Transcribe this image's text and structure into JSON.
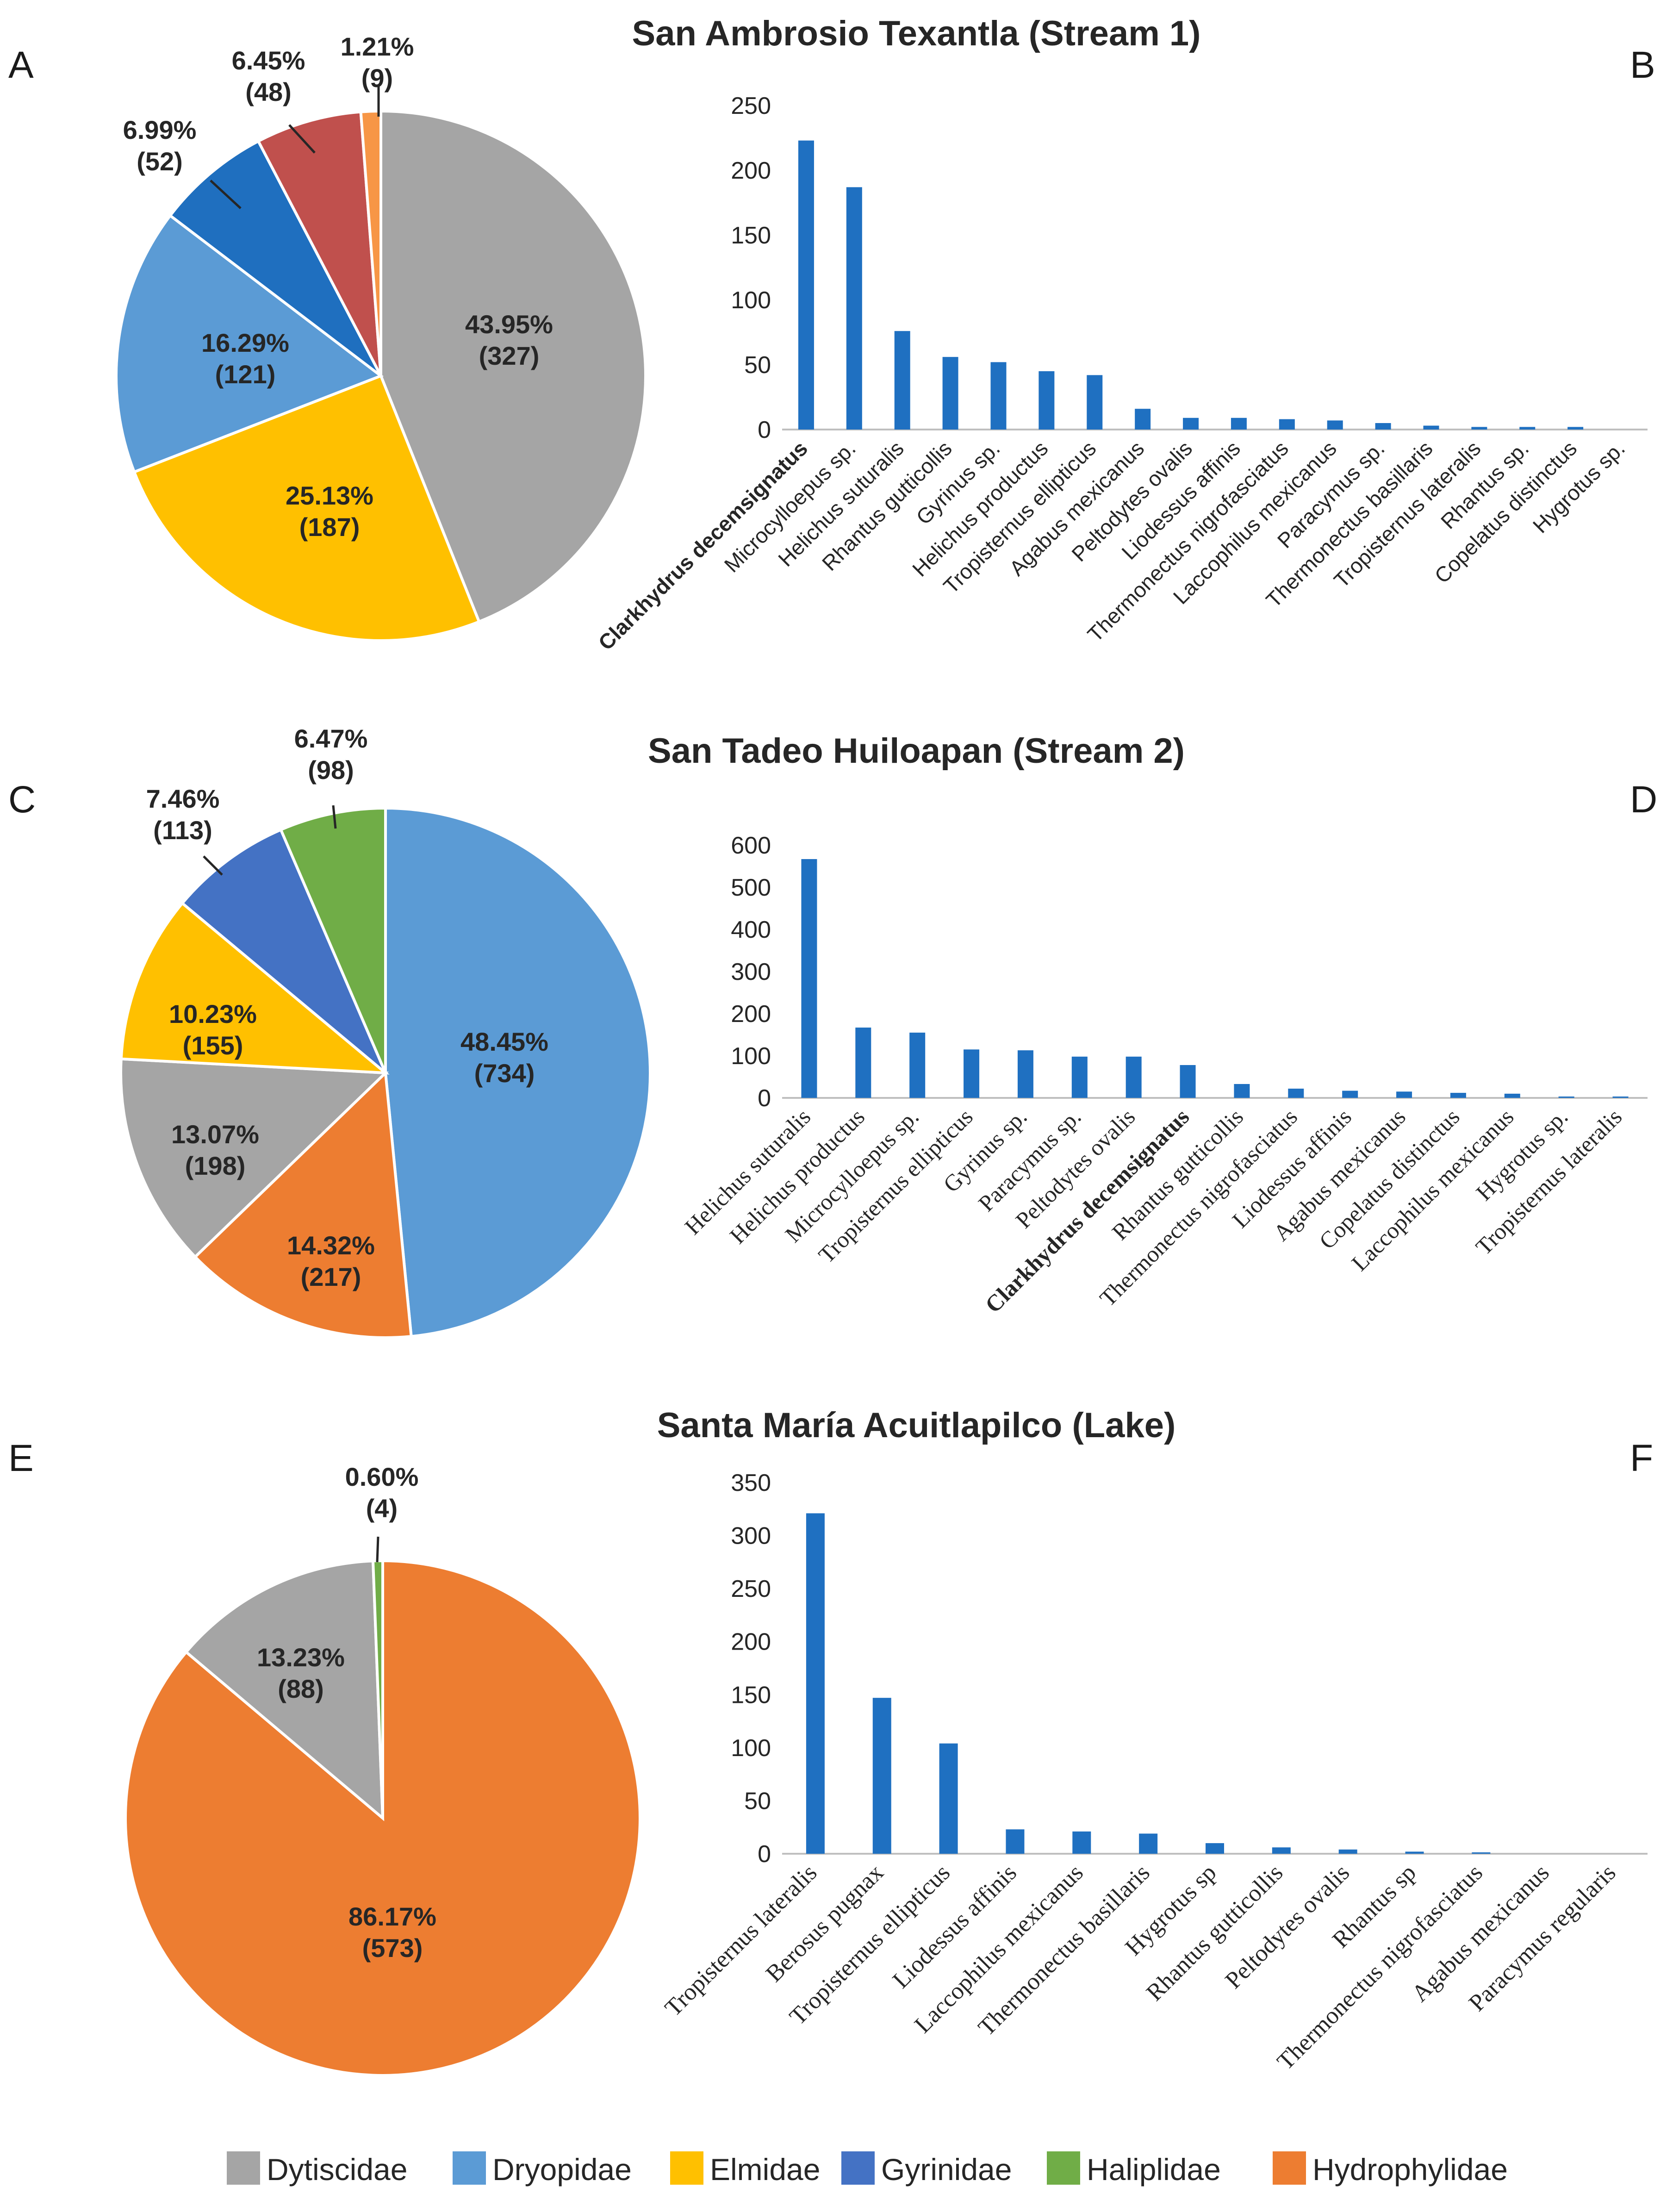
{
  "colors": {
    "Dytiscidae": "#A5A5A5",
    "Dryopidae": "#5B9BD5",
    "Elmidae": "#FFC000",
    "Gyrinidae": "#4472C4",
    "Haliplidae": "#70AD47",
    "Hydrophylidae": "#ED7D31",
    "dark_blue": "#1F6FBF",
    "red": "#C0504D",
    "light_orange": "#F79646",
    "bar": "#1F70C1",
    "axis": "#BFBFBF",
    "text": "#262626"
  },
  "legend": [
    "Dytiscidae",
    "Dryopidae",
    "Elmidae",
    "Gyrinidae",
    "Haliplidae",
    "Hydrophylidae"
  ],
  "chart_data": [
    {
      "panel": "A",
      "type": "pie",
      "section_title": "San Ambrosio Texantla (Stream 1)",
      "slices": [
        {
          "percent_label": "43.95%",
          "count_label": "(327)",
          "value": 327,
          "color": "#A5A5A5"
        },
        {
          "percent_label": "25.13%",
          "count_label": "(187)",
          "value": 187,
          "color": "#FFC000"
        },
        {
          "percent_label": "16.29%",
          "count_label": "(121)",
          "value": 121,
          "color": "#5B9BD5"
        },
        {
          "percent_label": "6.99%",
          "count_label": "(52)",
          "value": 52,
          "color": "#1F6FBF"
        },
        {
          "percent_label": "6.45%",
          "count_label": "(48)",
          "value": 48,
          "color": "#C0504D"
        },
        {
          "percent_label": "1.21%",
          "count_label": "(9)",
          "value": 9,
          "color": "#F79646"
        }
      ]
    },
    {
      "panel": "B",
      "type": "bar",
      "ylim": [
        0,
        250
      ],
      "yticks": [
        "0",
        "50",
        "100",
        "150",
        "200",
        "250"
      ],
      "categories": [
        "Clarkhydrus decemsignatus",
        "Microcylloepus sp.",
        "Helichus suturalis",
        "Rhantus gutticollis",
        "Gyrinus sp.",
        "Helichus productus",
        "Tropisternus ellipticus",
        "Agabus mexicanus",
        "Peltodytes ovalis",
        "Liodessus affinis",
        "Thermonectus nigrofasciatus",
        "Laccophilus mexicanus",
        "Paracymus sp.",
        "Thermonectus basillaris",
        "Tropisternus lateralis",
        "Rhantus sp.",
        "Copelatus distinctus",
        "Hygrotus sp."
      ],
      "values": [
        223,
        187,
        76,
        56,
        52,
        45,
        42,
        16,
        9,
        9,
        8,
        7,
        5,
        3,
        2,
        2,
        2,
        0
      ],
      "bold_category": "Clarkhydrus decemsignatus"
    },
    {
      "panel": "C",
      "type": "pie",
      "section_title": "San Tadeo Huiloapan (Stream 2)",
      "slices": [
        {
          "percent_label": "48.45%",
          "count_label": "(734)",
          "value": 734,
          "color": "#5B9BD5"
        },
        {
          "percent_label": "14.32%",
          "count_label": "(217)",
          "value": 217,
          "color": "#ED7D31"
        },
        {
          "percent_label": "13.07%",
          "count_label": "(198)",
          "value": 198,
          "color": "#A5A5A5"
        },
        {
          "percent_label": "10.23%",
          "count_label": "(155)",
          "value": 155,
          "color": "#FFC000"
        },
        {
          "percent_label": "7.46%",
          "count_label": "(113)",
          "value": 113,
          "color": "#4472C4"
        },
        {
          "percent_label": "6.47%",
          "count_label": "(98)",
          "value": 98,
          "color": "#70AD47"
        }
      ]
    },
    {
      "panel": "D",
      "type": "bar",
      "ylim": [
        0,
        600
      ],
      "yticks": [
        "0",
        "100",
        "200",
        "300",
        "400",
        "500",
        "600"
      ],
      "categories": [
        "Helichus suturalis",
        "Helichus productus",
        "Microcylloepus sp.",
        "Tropisternus ellipticus",
        "Gyrinus sp.",
        "Paracymus sp.",
        "Peltodytes ovalis",
        "Clarkhydrus decemsignatus",
        "Rhantus gutticollis",
        "Thermonectus nigrofasciatus",
        "Liodessus affinis",
        "Agabus mexicanus",
        "Copelatus distinctus",
        "Laccophilus mexicanus",
        "Hygrotus sp.",
        "Tropisternus lateralis"
      ],
      "values": [
        567,
        167,
        155,
        115,
        113,
        98,
        98,
        78,
        33,
        22,
        17,
        15,
        12,
        10,
        1,
        1
      ],
      "bold_category": "Clarkhydrus decemsignatus"
    },
    {
      "panel": "E",
      "type": "pie",
      "section_title": "Santa María Acuitlapilco (Lake)",
      "slices": [
        {
          "percent_label": "86.17%",
          "count_label": "(573)",
          "value": 573,
          "color": "#ED7D31"
        },
        {
          "percent_label": "13.23%",
          "count_label": "(88)",
          "value": 88,
          "color": "#A5A5A5"
        },
        {
          "percent_label": "0.60%",
          "count_label": "(4)",
          "value": 4,
          "color": "#70AD47"
        }
      ]
    },
    {
      "panel": "F",
      "type": "bar",
      "ylim": [
        0,
        350
      ],
      "yticks": [
        "0",
        "50",
        "100",
        "150",
        "200",
        "250",
        "300",
        "350"
      ],
      "categories": [
        "Tropisternus lateralis",
        "Berosus pugnax",
        "Tropisternus ellipticus",
        "Liodessus affinis",
        "Laccophilus mexicanus",
        "Thermonectus basillaris",
        "Hygrotus sp",
        "Rhantus gutticollis",
        "Peltodytes ovalis",
        "Rhantus sp",
        "Thermonectus nigrofasciatus",
        "Agabus mexicanus",
        "Paracymus regularis"
      ],
      "values": [
        321,
        147,
        104,
        23,
        21,
        19,
        10,
        6,
        4,
        2,
        1,
        0,
        0
      ],
      "bold_category": ""
    }
  ]
}
